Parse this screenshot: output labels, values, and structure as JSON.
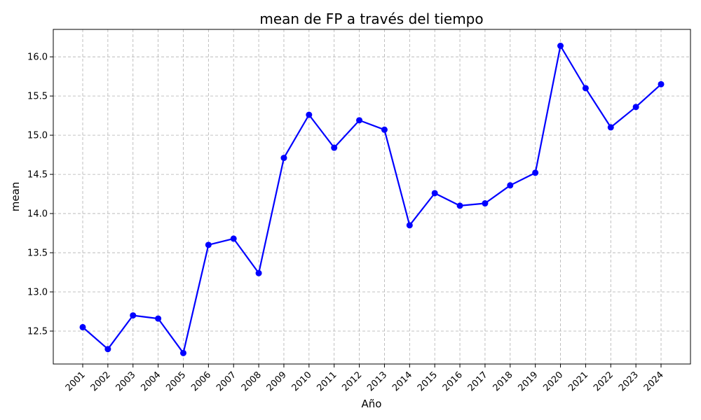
{
  "chart_data": {
    "type": "line",
    "title": "mean de FP a través del tiempo",
    "xlabel": "Año",
    "ylabel": "mean",
    "categories": [
      "2001",
      "2002",
      "2003",
      "2004",
      "2005",
      "2006",
      "2007",
      "2008",
      "2009",
      "2010",
      "2011",
      "2012",
      "2013",
      "2014",
      "2015",
      "2016",
      "2017",
      "2018",
      "2019",
      "2020",
      "2021",
      "2022",
      "2023",
      "2024"
    ],
    "series": [
      {
        "values": [
          12.55,
          12.27,
          12.7,
          12.66,
          12.22,
          13.6,
          13.68,
          13.24,
          14.71,
          15.26,
          14.84,
          15.19,
          15.07,
          13.85,
          14.26,
          14.1,
          14.13,
          14.36,
          14.52,
          16.14,
          15.6,
          15.1,
          15.36,
          15.65
        ],
        "color": "#0000ff"
      }
    ],
    "yticks": [
      "12.5",
      "13.0",
      "13.5",
      "14.0",
      "14.5",
      "15.0",
      "15.5",
      "16.0"
    ],
    "ylim": [
      12.08,
      16.35
    ],
    "grid": true
  }
}
